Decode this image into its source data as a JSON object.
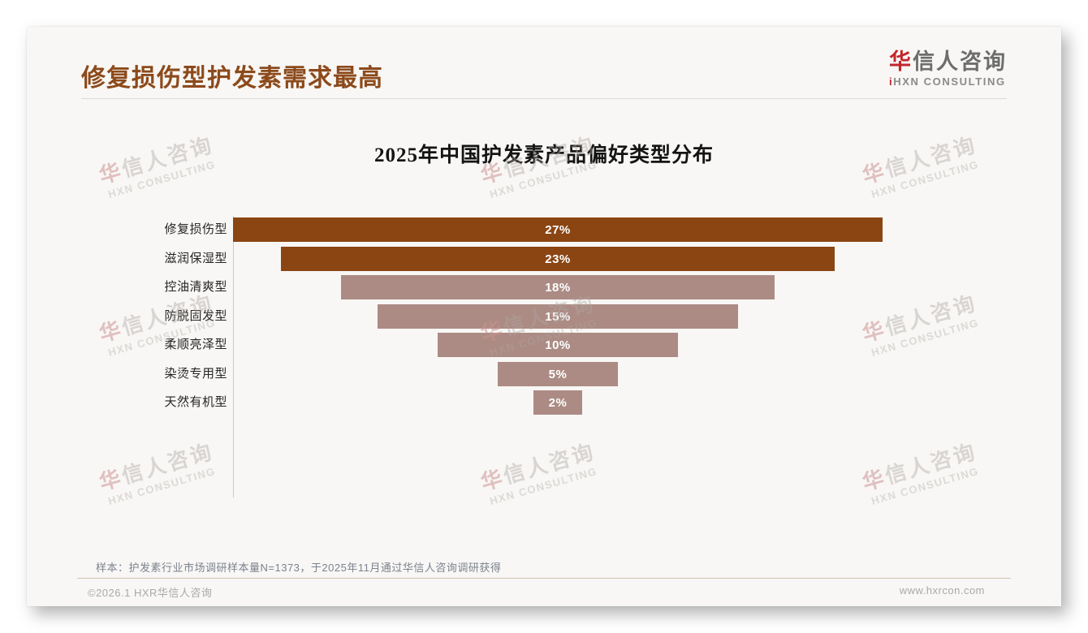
{
  "page": {
    "title": "修复损伤型护发素需求最高",
    "logo": {
      "brand_first": "华",
      "brand_rest": "信人咨询",
      "subtitle_mark": "i",
      "subtitle": "HXN CONSULTING"
    },
    "note": "样本：护发素行业市场调研样本量N=1373，于2025年11月通过华信人咨询调研获得",
    "footer_left": "©2026.1 HXR华信人咨询",
    "footer_right": "www.hxrcon.com",
    "watermark": {
      "line1_first": "华",
      "line1_rest": "信人咨询",
      "line2": "HXN CONSULTING"
    }
  },
  "chart_data": {
    "type": "bar",
    "variant": "centered-funnel",
    "title": "2025年中国护发素产品偏好类型分布",
    "categories": [
      "修复损伤型",
      "滋润保湿型",
      "控油清爽型",
      "防脱固发型",
      "柔顺亮泽型",
      "染烫专用型",
      "天然有机型"
    ],
    "values": [
      27,
      23,
      18,
      15,
      10,
      5,
      2
    ],
    "value_labels": [
      "27%",
      "23%",
      "18%",
      "15%",
      "10%",
      "5%",
      "2%"
    ],
    "xlim": [
      0,
      27
    ],
    "grid": false,
    "legend": false,
    "colors": {
      "emphasis": "#8B4513",
      "muted": "#AC8B84"
    },
    "emphasis_count": 2
  }
}
